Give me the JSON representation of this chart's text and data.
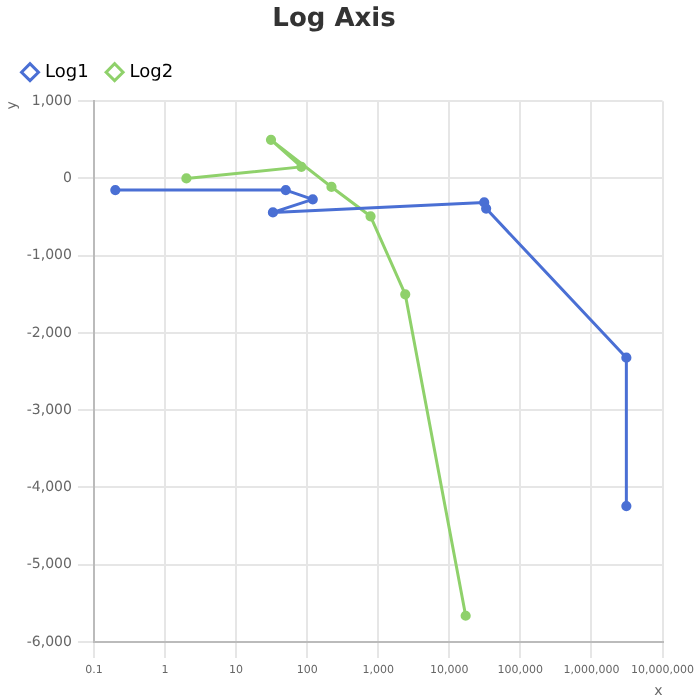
{
  "chart_data": {
    "type": "line",
    "title": "Log Axis",
    "xlabel": "x",
    "ylabel": "y",
    "log": "x",
    "xlim": [
      0.1,
      10000000
    ],
    "xticks": [
      {
        "value": 0.1,
        "label": "0.1"
      },
      1,
      10,
      100,
      {
        "value": 1000,
        "label": "1,000"
      },
      {
        "value": 10000,
        "label": "10,000"
      },
      {
        "value": 100000,
        "label": "100,000"
      },
      {
        "value": 1000000,
        "label": "1,000,000"
      },
      {
        "value": 10000000,
        "label": "10,000,000"
      }
    ],
    "ylim": [
      -6000,
      1000
    ],
    "yticks": [
      {
        "value": -6000,
        "label": "-6,000"
      },
      {
        "value": -5000,
        "label": "-5,000"
      },
      {
        "value": -4000,
        "label": "-4,000"
      },
      {
        "value": -3000,
        "label": "-3,000"
      },
      {
        "value": -2000,
        "label": "-2,000"
      },
      {
        "value": -1000,
        "label": "-1,000"
      },
      0,
      {
        "value": 1000,
        "label": "1,000"
      }
    ],
    "grid": true,
    "legend": "top left",
    "marker": "circle",
    "line_style": "solid",
    "series": [
      {
        "name": "Log1",
        "color": "#4a6fd4",
        "x": [
          0.2,
          50,
          120,
          33,
          31000,
          33000,
          3100000,
          3100000
        ],
        "values": [
          -150,
          -150,
          -270,
          -440,
          -310,
          -390,
          -2320,
          -4240
        ]
      },
      {
        "name": "Log2",
        "color": "#8fd16b",
        "x": [
          2,
          83,
          31,
          220,
          780,
          2400,
          17000
        ],
        "values": [
          0,
          150,
          500,
          -110,
          -490,
          -1500,
          -5660
        ]
      }
    ]
  }
}
